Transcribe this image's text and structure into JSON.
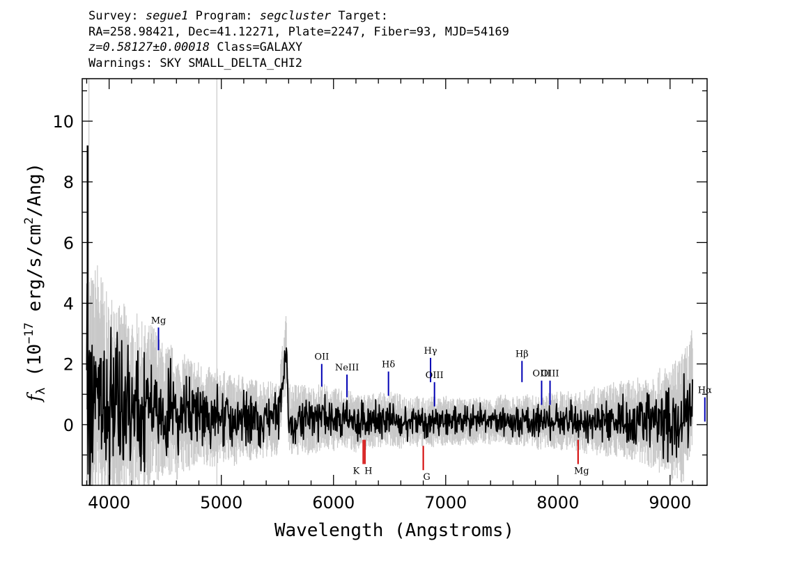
{
  "header": {
    "survey_label": "Survey:",
    "survey": "segue1",
    "program_label": "Program:",
    "program": "segcluster",
    "target_label": "Target:",
    "line2": "RA=258.98421, Dec=41.12271, Plate=2247, Fiber=93, MJD=54169",
    "redshift": "z=0.58127±0.00018",
    "class": "Class=GALAXY",
    "warnings": "Warnings: SKY SMALL_DELTA_CHI2"
  },
  "chart_data": {
    "type": "line",
    "xlabel": "Wavelength (Angstroms)",
    "ylabel": "fλ (10⁻¹⁷ erg/s/cm²/Ang)",
    "xlim": [
      3760,
      9330
    ],
    "ylim": [
      -2,
      11.4
    ],
    "x_ticks": [
      4000,
      5000,
      6000,
      7000,
      8000,
      9000
    ],
    "y_ticks": [
      0,
      2,
      4,
      6,
      8,
      10
    ],
    "grid": false,
    "colors": {
      "flux": "#000000",
      "noise": "#c8c8c8",
      "emission": "#0000b4",
      "absorption": "#d20000"
    },
    "series": [
      {
        "role": "flux",
        "x": [
          3800,
          3850,
          3900,
          3950,
          4000,
          4050,
          4100,
          4150,
          4200,
          4250,
          4300,
          4350,
          4400,
          4450,
          4500,
          4550,
          4600,
          4700,
          4800,
          4900,
          5000,
          5100,
          5200,
          5300,
          5400,
          5500,
          5580,
          5600,
          5700,
          5800,
          5900,
          6000,
          6100,
          6200,
          6300,
          6400,
          6500,
          6600,
          6700,
          6800,
          6900,
          7000,
          7100,
          7200,
          7300,
          7400,
          7500,
          7600,
          7700,
          7800,
          7900,
          8000,
          8100,
          8200,
          8300,
          8400,
          8500,
          8600,
          8700,
          8800,
          8900,
          9000,
          9100,
          9150,
          9200
        ],
        "y": [
          1.0,
          0.6,
          1.4,
          0.8,
          0.3,
          1.2,
          0.4,
          0.9,
          0.2,
          0.7,
          0.5,
          0.6,
          0.8,
          0.4,
          0.3,
          0.5,
          0.2,
          0.4,
          0.3,
          0.2,
          0.3,
          0.1,
          0.25,
          0.15,
          0.2,
          0.1,
          2.5,
          0.1,
          0.2,
          0.1,
          0.3,
          0.15,
          0.2,
          0.05,
          0.1,
          0.15,
          0.2,
          0.1,
          0.15,
          0.05,
          0.1,
          0.15,
          0.1,
          0.05,
          0.15,
          0.1,
          0.2,
          0.1,
          0.15,
          0.05,
          0.1,
          0.15,
          0.1,
          0.05,
          0.15,
          0.1,
          0.2,
          0.15,
          0.1,
          0.2,
          0.1,
          0.05,
          0.15,
          0.5,
          0.9
        ]
      },
      {
        "role": "noise",
        "x": [
          3800,
          3900,
          4000,
          4100,
          4200,
          4300,
          4400,
          4500,
          4600,
          4800,
          5000,
          5200,
          5400,
          5600,
          5800,
          6000,
          6200,
          6400,
          6600,
          6800,
          7000,
          7200,
          7400,
          7600,
          7800,
          8000,
          8200,
          8400,
          8600,
          8800,
          9000,
          9200
        ],
        "y": [
          3.5,
          3.2,
          2.9,
          2.6,
          2.4,
          2.2,
          2.0,
          1.8,
          1.6,
          1.4,
          1.2,
          1.1,
          1.0,
          0.95,
          0.9,
          0.8,
          0.75,
          0.7,
          0.7,
          0.65,
          0.65,
          0.6,
          0.6,
          0.65,
          0.7,
          0.75,
          0.8,
          0.9,
          1.0,
          1.2,
          1.5,
          1.8
        ]
      }
    ],
    "sky_lines": [
      3820,
      4960
    ],
    "emission_lines": [
      {
        "label": "Mg",
        "x": 4440,
        "y0": 2.45,
        "y1": 3.2
      },
      {
        "label": "OII",
        "x": 5895,
        "y0": 1.25,
        "y1": 2.0
      },
      {
        "label": "NeIII",
        "x": 6120,
        "y0": 0.9,
        "y1": 1.65
      },
      {
        "label": "Hδ",
        "x": 6490,
        "y0": 0.95,
        "y1": 1.75
      },
      {
        "label": "Hγ",
        "x": 6865,
        "y0": 1.4,
        "y1": 2.2
      },
      {
        "label": "OIII",
        "x": 6900,
        "y0": 0.6,
        "y1": 1.4
      },
      {
        "label": "Hβ",
        "x": 7680,
        "y0": 1.4,
        "y1": 2.1
      },
      {
        "label": "OIII",
        "x": 7855,
        "y0": 0.65,
        "y1": 1.45
      },
      {
        "label": "OIII",
        "x": 7930,
        "y0": 0.65,
        "y1": 1.45
      },
      {
        "label": "Hα",
        "x": 9310,
        "y0": 0.1,
        "y1": 0.9
      }
    ],
    "absorption_lines": [
      {
        "label": "K",
        "x": 6265,
        "y0": -1.3,
        "y1": -0.5
      },
      {
        "label": "H",
        "x": 6280,
        "y0": -1.3,
        "y1": -0.5
      },
      {
        "label": "G",
        "x": 6800,
        "y0": -1.5,
        "y1": -0.7
      },
      {
        "label": "Mg",
        "x": 8180,
        "y0": -1.3,
        "y1": -0.5
      }
    ]
  }
}
